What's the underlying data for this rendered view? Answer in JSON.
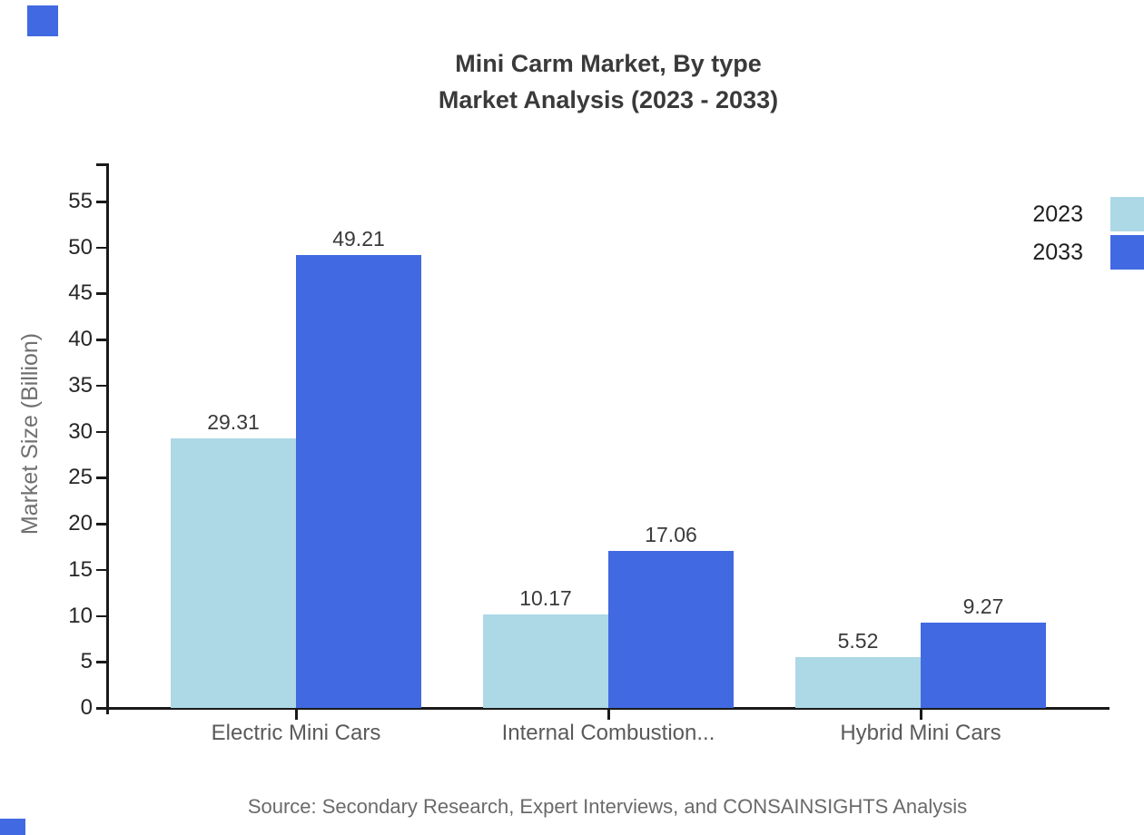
{
  "title": {
    "line1": "Mini Carm Market, By type",
    "line2": "Market Analysis (2023 - 2033)"
  },
  "source": "Source: Secondary Research, Expert Interviews, and CONSAINSIGHTS Analysis",
  "colors": {
    "series_2023": "#ADD8E6",
    "series_2033": "#4169E1",
    "axis": "#1a1a1a",
    "tick_label": "#262626",
    "value_label": "#3a3a3a",
    "category_label": "#5a5a5a",
    "watermark": "#4169E1"
  },
  "chart_data": {
    "type": "bar",
    "title": "Mini Carm Market, By type Market Analysis (2023 - 2033)",
    "categories": [
      "Electric Mini Cars",
      "Internal Combustion...",
      "Hybrid Mini Cars"
    ],
    "series": [
      {
        "name": "2023",
        "color": "#ADD8E6",
        "values": [
          29.31,
          10.17,
          5.52
        ]
      },
      {
        "name": "2033",
        "color": "#4169E1",
        "values": [
          49.21,
          17.06,
          9.27
        ]
      }
    ],
    "xlabel": "",
    "ylabel": "Market Size (Billion)",
    "ylim": [
      0,
      59
    ],
    "yticks": [
      0,
      5,
      10,
      15,
      20,
      25,
      30,
      35,
      40,
      45,
      50,
      55
    ],
    "grid": false,
    "legend_position": "top-right",
    "value_labels": true,
    "value_label_format": "2-decimals"
  }
}
